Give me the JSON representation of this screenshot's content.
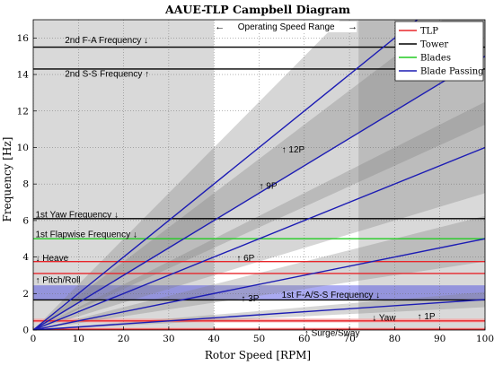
{
  "chart_data": {
    "type": "line",
    "title": "AAUE-TLP Campbell Diagram",
    "xlabel": "Rotor Speed [RPM]",
    "ylabel": "Frequency [Hz]",
    "xlim": [
      0,
      100
    ],
    "ylim": [
      0,
      17
    ],
    "xticks": [
      "0",
      "10",
      "20",
      "30",
      "40",
      "50",
      "60",
      "70",
      "80",
      "90",
      "100"
    ],
    "yticks": [
      "0",
      "2",
      "4",
      "6",
      "8",
      "10",
      "12",
      "14",
      "16"
    ],
    "grid": true,
    "legend": {
      "placement": "top-right",
      "entries": [
        {
          "name": "TLP",
          "color": "#e8262b"
        },
        {
          "name": "Tower",
          "color": "#000000"
        },
        {
          "name": "Blades",
          "color": "#22cc22"
        },
        {
          "name": "Blade Passing",
          "color": "#1c1cb4"
        }
      ]
    },
    "operating_range": {
      "x": [
        40,
        72
      ],
      "label": "Operating Speed Range",
      "arrow_left": "←",
      "arrow_right": "→"
    },
    "colors": {
      "frame_fill": "#ffffff",
      "out_of_range_fill": "#d9d9d9",
      "band_fill": "#808080",
      "blue_band_fill": "#3434e0",
      "red_band_fill": "#f4a6a6"
    },
    "horizontal_bands": [
      {
        "color": "blue",
        "y": [
          1.65,
          2.45
        ]
      },
      {
        "color": "red",
        "y": [
          0.42,
          0.62
        ]
      },
      {
        "color": "red",
        "y": [
          0.0,
          0.12
        ]
      }
    ],
    "horizontal_series": [
      {
        "series": "Tower",
        "y": 15.5
      },
      {
        "series": "Tower",
        "y": 14.3
      },
      {
        "series": "Tower",
        "y": 6.1
      },
      {
        "series": "Blades",
        "y": 5.0
      },
      {
        "series": "TLP",
        "y": 3.75
      },
      {
        "series": "TLP",
        "y": 3.1
      },
      {
        "series": "Tower",
        "y": 1.65
      },
      {
        "series": "TLP",
        "y": 0.5
      },
      {
        "series": "TLP",
        "y": 0.04
      }
    ],
    "blade_passing_series": [
      {
        "label": "1P",
        "multiple": 1
      },
      {
        "label": "3P",
        "multiple": 3
      },
      {
        "label": "6P",
        "multiple": 6
      },
      {
        "label": "9P",
        "multiple": 9
      },
      {
        "label": "12P",
        "multiple": 12
      }
    ],
    "uncertainty_band": {
      "widening_rate": 0.25
    },
    "annotations": [
      {
        "text": "2nd F-A Frequency ↓",
        "x": 7,
        "y": 15.9
      },
      {
        "text": "2nd S-S Frequency ↑",
        "x": 7,
        "y": 14.05
      },
      {
        "text": "1st Yaw Frequency ↓",
        "x": 0.5,
        "y": 6.35
      },
      {
        "text": "1st Flapwise Frequency ↓",
        "x": 0.5,
        "y": 5.25
      },
      {
        "text": "↓ Heave",
        "x": 0.5,
        "y": 3.95
      },
      {
        "text": "↑ Pitch/Roll",
        "x": 0.5,
        "y": 2.75
      },
      {
        "text": "1st F-A/S-S Frequency ↓",
        "x": 55,
        "y": 1.95
      },
      {
        "text": "↓ Yaw",
        "x": 75,
        "y": 0.7
      },
      {
        "text": "↑ Surge/Sway",
        "x": 60,
        "y": -0.15
      },
      {
        "text": "↑ 1P",
        "x": 85,
        "y": 0.75
      },
      {
        "text": "↑ 3P",
        "x": 46,
        "y": 1.75
      },
      {
        "text": "↑ 6P",
        "x": 45,
        "y": 3.95
      },
      {
        "text": "↑ 9P",
        "x": 50,
        "y": 7.9
      },
      {
        "text": "↑ 12P",
        "x": 55,
        "y": 9.9
      }
    ]
  }
}
